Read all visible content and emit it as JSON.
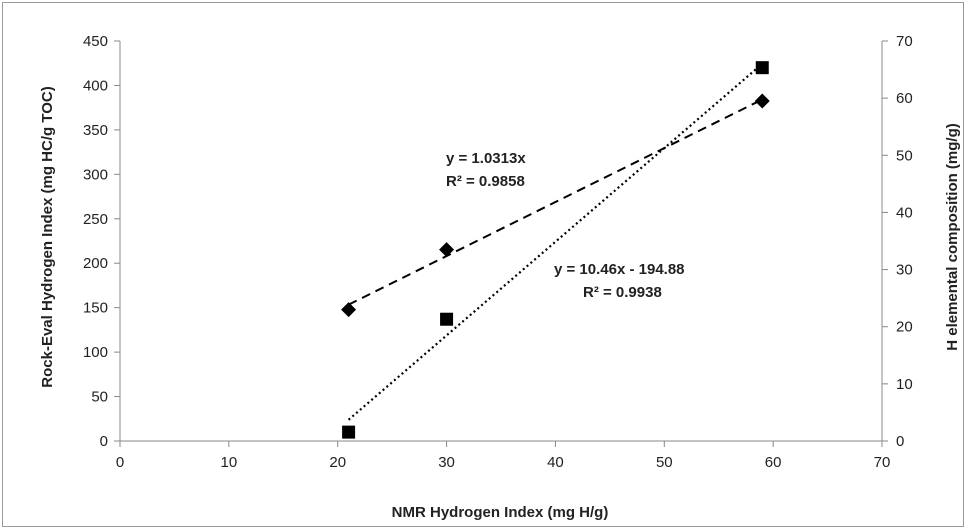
{
  "chart_data": {
    "type": "scatter",
    "xlabel": "NMR Hydrogen Index (mg H/g)",
    "ylabel_left": "Rock-Eval Hydrogen Index (mg HC/g TOC)",
    "ylabel_right": "H elemental composition (mg/g)",
    "xlim": [
      0,
      70
    ],
    "ylim_left": [
      0,
      450
    ],
    "ylim_right": [
      0,
      70
    ],
    "x_ticks": [
      "0",
      "10",
      "20",
      "30",
      "40",
      "50",
      "60",
      "70"
    ],
    "y_left_ticks": [
      "0",
      "50",
      "100",
      "150",
      "200",
      "250",
      "300",
      "350",
      "400",
      "450"
    ],
    "y_right_ticks": [
      "0",
      "10",
      "20",
      "30",
      "40",
      "50",
      "60",
      "70"
    ],
    "grid": false,
    "series": [
      {
        "marker": "diamond",
        "axis": "right",
        "color": "#000000",
        "x": [
          21,
          30,
          59
        ],
        "y": [
          23,
          33.5,
          59.5
        ],
        "trendline": {
          "style": "dashed",
          "equation": "y = 1.0313x",
          "r2": "R² = 0.9858",
          "x_range": [
            21,
            59
          ]
        }
      },
      {
        "marker": "square",
        "axis": "left",
        "color": "#000000",
        "x": [
          21,
          30,
          59
        ],
        "y": [
          10,
          137,
          420
        ],
        "trendline": {
          "style": "dotted",
          "equation": "y = 10.46x - 194.88",
          "r2": "R² = 0.9938",
          "x_range": [
            21,
            59
          ]
        }
      }
    ]
  }
}
